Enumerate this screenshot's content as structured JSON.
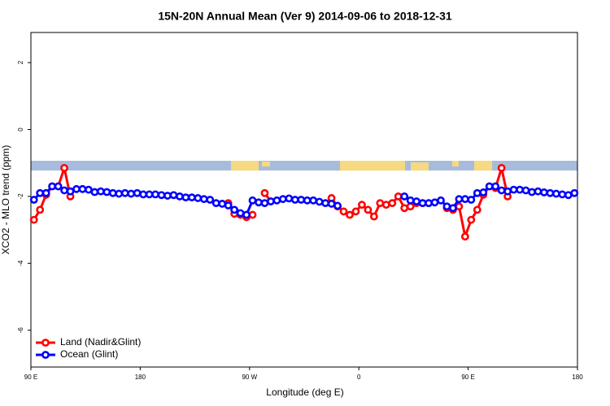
{
  "chart_data": {
    "type": "line",
    "title": "15N-20N Annual Mean (Ver 9)   2014-09-06 to 2018-12-31",
    "x_label": "Longitude (deg E)",
    "y_label": "XCO2 - MLO trend (ppm)",
    "x": [
      92.5,
      97.5,
      102.5,
      107.5,
      112.5,
      117.5,
      122.5,
      127.5,
      132.5,
      137.5,
      142.5,
      147.5,
      152.5,
      157.5,
      162.5,
      167.5,
      172.5,
      177.5,
      182.5,
      187.5,
      192.5,
      197.5,
      202.5,
      207.5,
      212.5,
      217.5,
      222.5,
      227.5,
      232.5,
      237.5,
      242.5,
      247.5,
      252.5,
      257.5,
      262.5,
      267.5,
      272.5,
      277.5,
      282.5,
      287.5,
      292.5,
      297.5,
      302.5,
      307.5,
      312.5,
      317.5,
      322.5,
      327.5,
      332.5,
      337.5,
      342.5,
      347.5,
      352.5,
      357.5,
      362.5,
      367.5,
      372.5,
      377.5,
      382.5,
      387.5,
      392.5,
      397.5,
      402.5,
      407.5,
      412.5,
      417.5,
      422.5,
      427.5,
      432.5,
      437.5,
      442.5,
      447.5,
      452.5,
      457.5,
      462.5,
      467.5,
      472.5,
      477.5,
      482.5,
      487.5,
      492.5,
      497.5,
      502.5,
      507.5,
      512.5,
      517.5,
      522.5,
      527.5,
      532.5,
      537.5
    ],
    "series": [
      {
        "name": "Land (Nadir&Glint)",
        "color": "#ff0000",
        "values": [
          -2.7,
          -2.4,
          -1.95,
          -1.7,
          -1.7,
          -1.15,
          -2.0,
          null,
          null,
          null,
          null,
          null,
          null,
          null,
          null,
          null,
          null,
          null,
          null,
          null,
          null,
          null,
          null,
          null,
          null,
          null,
          null,
          null,
          null,
          null,
          null,
          null,
          -2.2,
          -2.52,
          -2.55,
          -2.62,
          -2.55,
          null,
          -1.9,
          -2.15,
          null,
          null,
          null,
          null,
          null,
          null,
          null,
          null,
          null,
          -2.05,
          -2.3,
          -2.45,
          -2.55,
          -2.45,
          -2.25,
          -2.4,
          -2.6,
          -2.2,
          -2.25,
          -2.2,
          -2.0,
          -2.35,
          -2.3,
          -2.2,
          -2.2,
          -2.2,
          null,
          null,
          -2.35,
          -2.4,
          -2.3,
          -3.2,
          -2.7,
          -2.4,
          -1.95,
          -1.7,
          -1.75,
          -1.15,
          -2.0,
          null,
          null,
          null,
          null,
          null,
          null,
          null,
          null,
          null,
          null,
          null
        ]
      },
      {
        "name": "Ocean (Glint)",
        "color": "#0000ff",
        "values": [
          -2.1,
          -1.9,
          -1.9,
          -1.7,
          -1.7,
          -1.82,
          -1.85,
          -1.78,
          -1.78,
          -1.8,
          -1.87,
          -1.85,
          -1.87,
          -1.9,
          -1.92,
          -1.9,
          -1.92,
          -1.9,
          -1.94,
          -1.94,
          -1.94,
          -1.96,
          -1.98,
          -1.96,
          -2.0,
          -2.03,
          -2.03,
          -2.05,
          -2.08,
          -2.1,
          -2.2,
          -2.22,
          -2.27,
          -2.4,
          -2.5,
          -2.55,
          -2.12,
          -2.18,
          -2.2,
          -2.15,
          -2.12,
          -2.08,
          -2.06,
          -2.1,
          -2.1,
          -2.12,
          -2.12,
          -2.16,
          -2.2,
          -2.22,
          -2.28,
          null,
          null,
          null,
          null,
          null,
          null,
          null,
          null,
          null,
          null,
          -2.0,
          -2.12,
          -2.15,
          -2.2,
          -2.2,
          -2.18,
          -2.12,
          -2.3,
          -2.35,
          -2.08,
          -2.08,
          -2.1,
          -1.9,
          -1.88,
          -1.7,
          -1.7,
          -1.82,
          -1.85,
          -1.8,
          -1.8,
          -1.82,
          -1.87,
          -1.85,
          -1.88,
          -1.9,
          -1.92,
          -1.94,
          -1.96,
          -1.9
        ]
      }
    ],
    "xlim": [
      90,
      540
    ],
    "xticks": [
      {
        "value": 90,
        "label": "90 E"
      },
      180,
      {
        "value": 270,
        "label": "90 W"
      },
      {
        "value": 360,
        "label": "0"
      },
      {
        "value": 450,
        "label": "90 E"
      },
      {
        "value": 540,
        "label": "180"
      }
    ],
    "ylim": [
      -7.1,
      2.9
    ],
    "yticks": [
      -6,
      -4,
      -2,
      0,
      2
    ],
    "legend": "bottom-left"
  }
}
